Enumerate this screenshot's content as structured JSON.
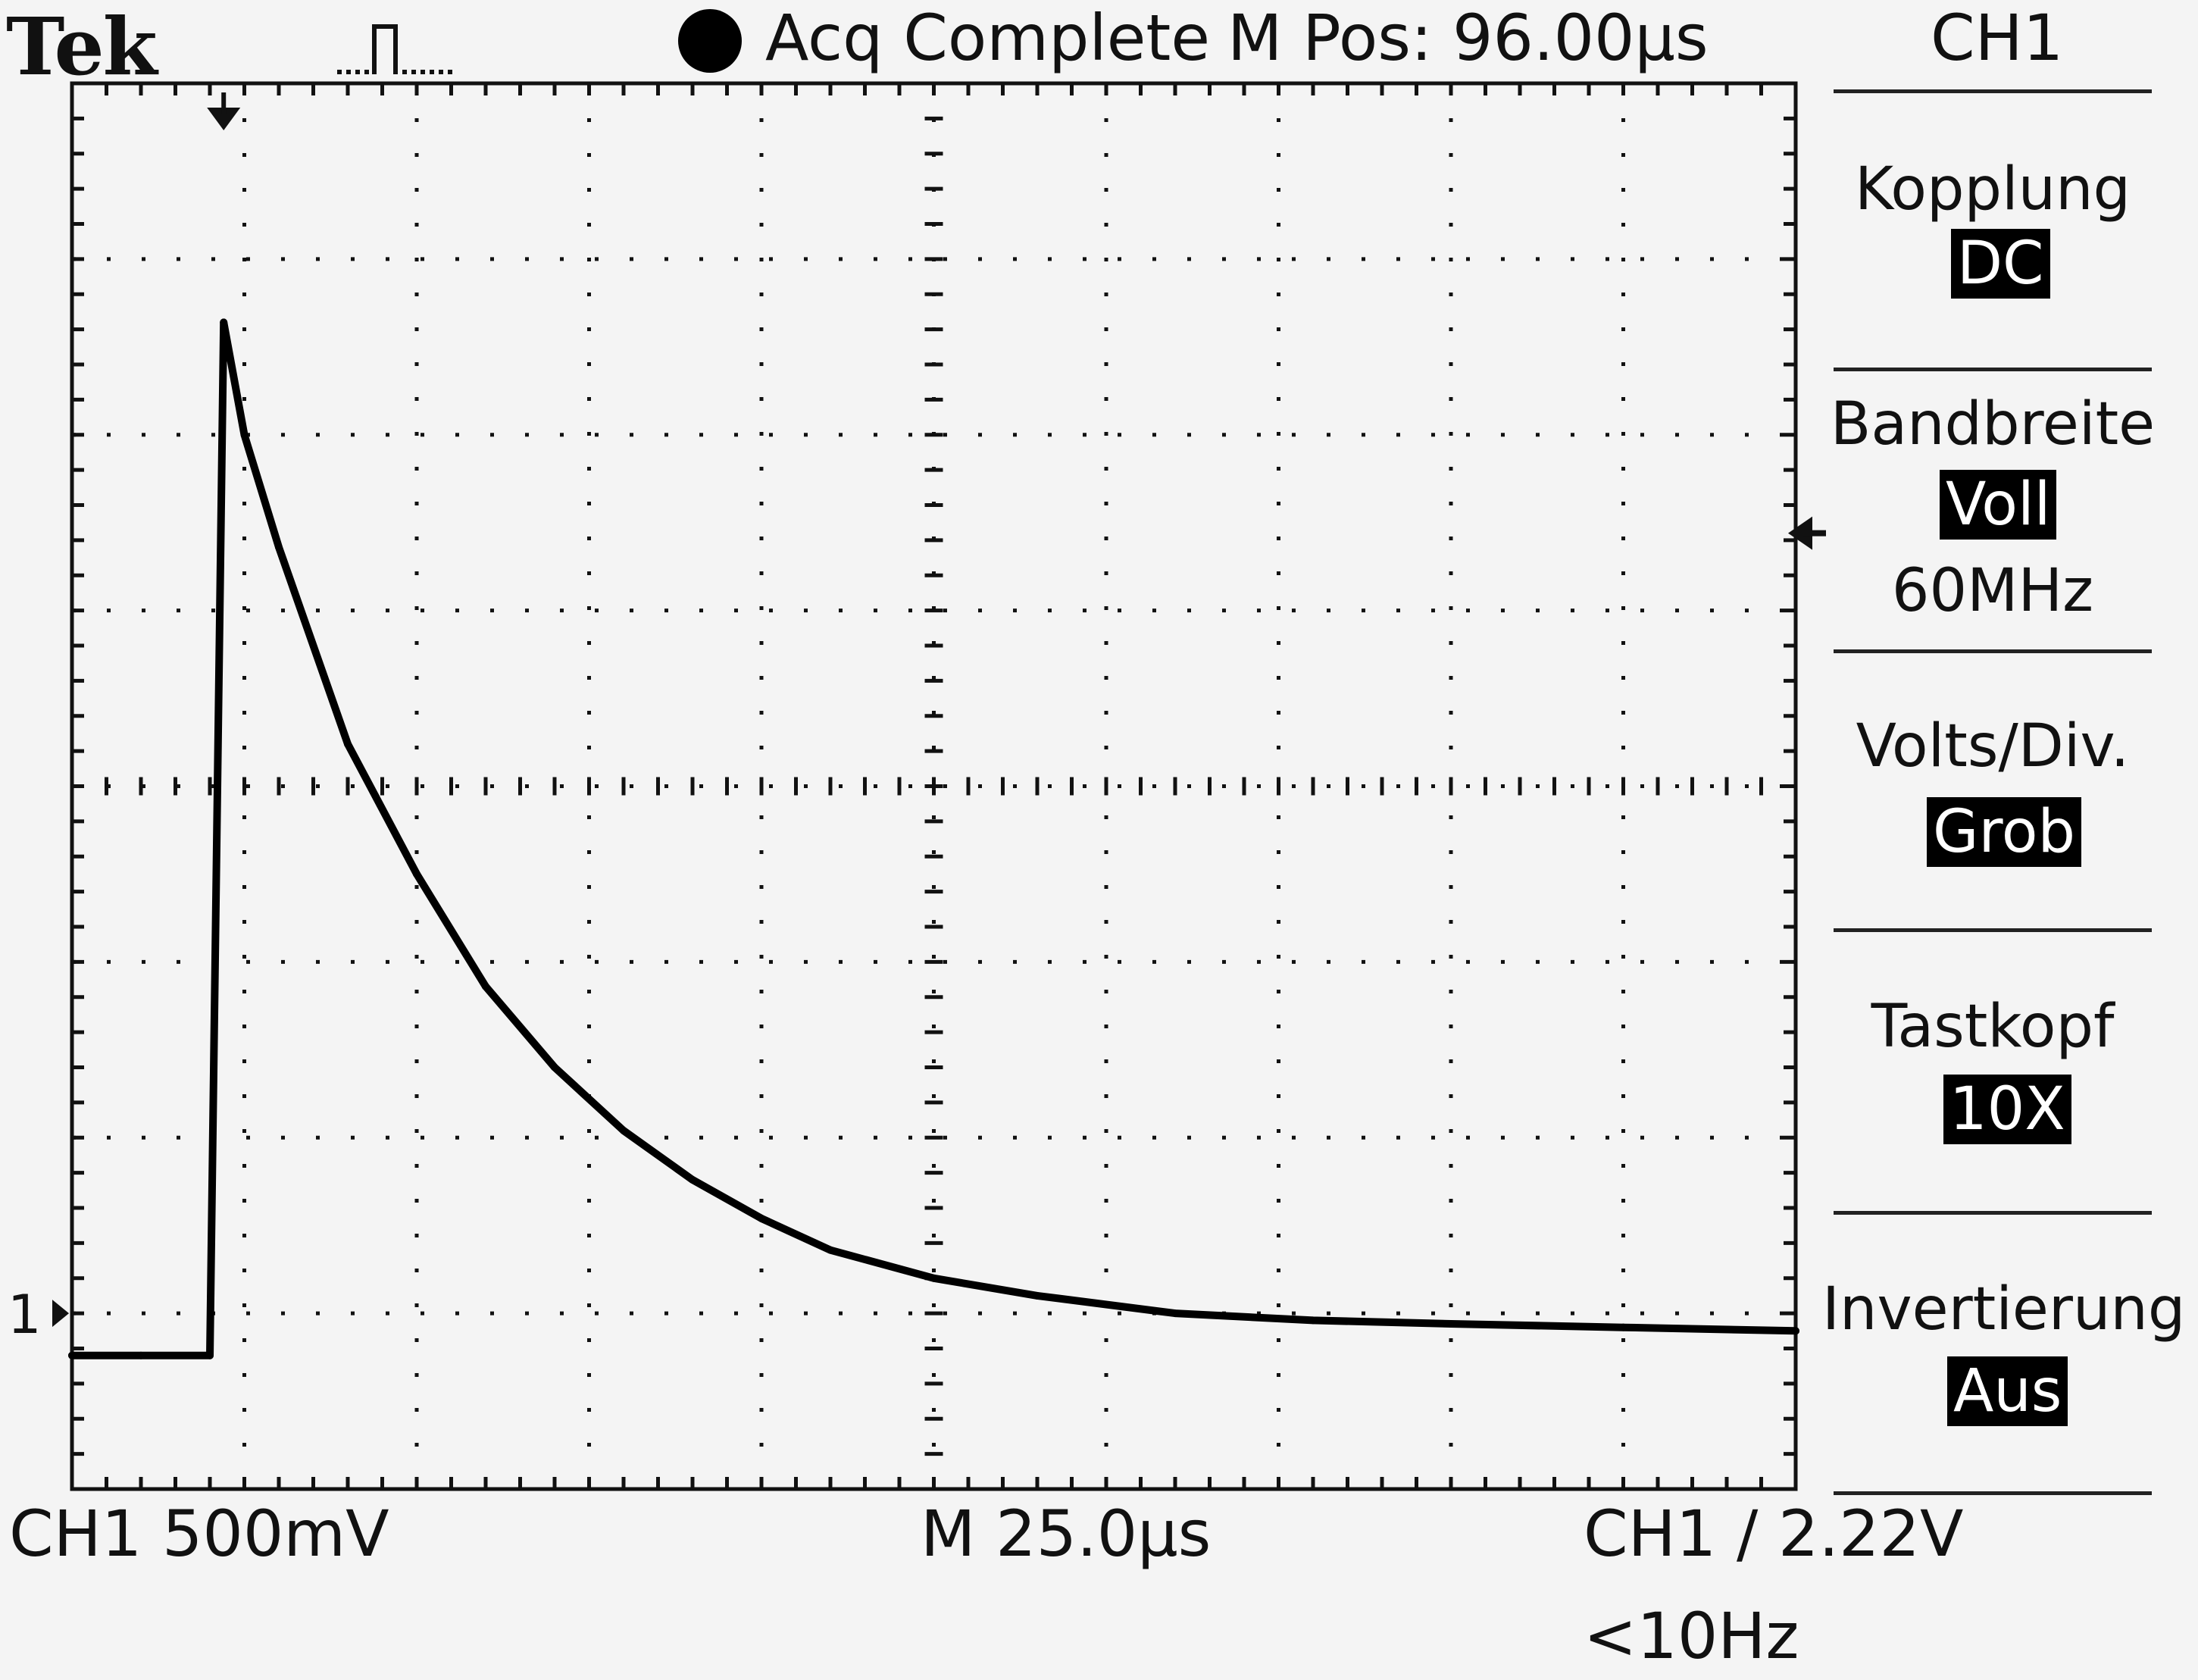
{
  "header": {
    "brand": "Tek",
    "trigger_icon": "pulse-trigger-icon",
    "status_indicator_color": "#000000",
    "status": "Acq Complete",
    "m_pos": "M Pos: 96.00µs",
    "channel": "CH1"
  },
  "menu": {
    "items": [
      {
        "label": "Kopplung",
        "value": "DC",
        "sub": ""
      },
      {
        "label": "Bandbreite",
        "value": "Voll",
        "sub": "60MHz"
      },
      {
        "label": "Volts/Div.",
        "value": "Grob",
        "sub": ""
      },
      {
        "label": "Tastkopf",
        "value": "10X",
        "sub": ""
      },
      {
        "label": "Invertierung",
        "value": "Aus",
        "sub": ""
      }
    ]
  },
  "markers": {
    "channel_ground": "1",
    "trigger_position_icon": "down-arrow-icon",
    "trigger_level_icon": "left-arrow-icon"
  },
  "footer": {
    "ch_scale": "CH1  500mV",
    "time_scale": "M 25.0µs",
    "trigger": "CH1 ∕ 2.22V",
    "frequency": "<10Hz"
  },
  "chart_data": {
    "type": "line",
    "title": "",
    "xlabel": "",
    "ylabel": "",
    "x_unit": "µs",
    "y_unit": "V",
    "xlim": [
      0,
      250
    ],
    "ylim": [
      -0.5,
      3.5
    ],
    "grid": true,
    "series": [
      {
        "x": [
          0,
          10,
          20,
          22,
          25,
          30,
          40,
          50,
          60,
          70,
          80,
          90,
          100,
          110,
          125,
          140,
          160,
          180,
          200,
          225,
          250
        ],
        "y": [
          -0.12,
          -0.12,
          -0.12,
          2.82,
          2.5,
          2.18,
          1.62,
          1.25,
          0.93,
          0.7,
          0.52,
          0.38,
          0.27,
          0.18,
          0.1,
          0.05,
          0.0,
          -0.02,
          -0.03,
          -0.04,
          -0.05
        ]
      }
    ]
  }
}
